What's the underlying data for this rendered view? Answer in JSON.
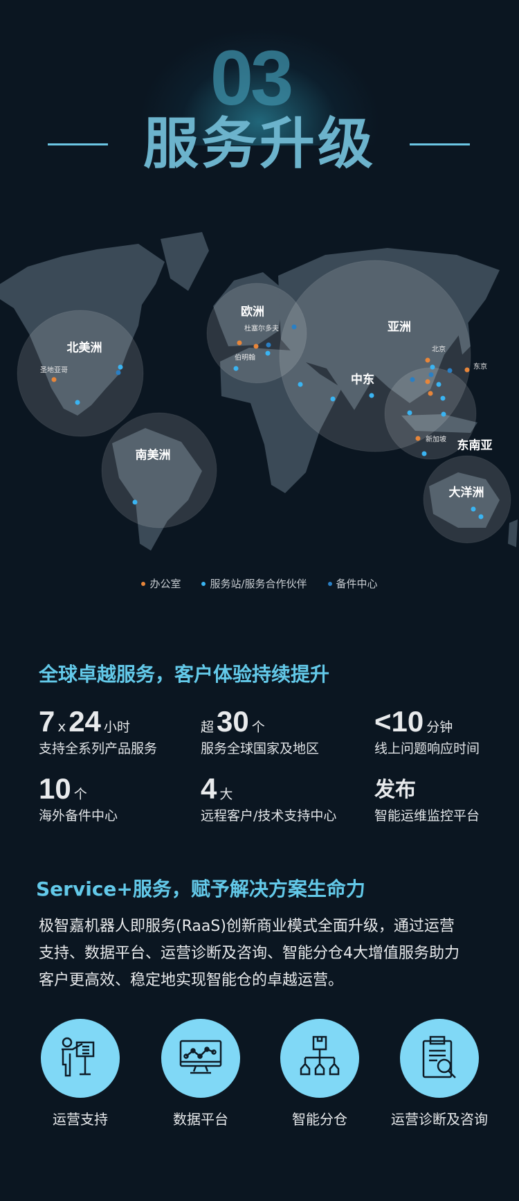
{
  "header": {
    "section_number": "03",
    "title": "服务升级"
  },
  "map": {
    "continents": [
      "北美洲",
      "南美洲",
      "欧洲",
      "亚洲",
      "中东",
      "东南亚",
      "大洋洲"
    ],
    "cities": [
      "圣地亚哥",
      "杜塞尔多夫",
      "伯明翰",
      "北京",
      "东京",
      "新加坡"
    ],
    "legend": [
      {
        "label": "办公室",
        "color": "#e8863a"
      },
      {
        "label": "服务站/服务合作伙伴",
        "color": "#3ab4f2"
      },
      {
        "label": "备件中心",
        "color": "#2a7fc4"
      }
    ]
  },
  "stats_section": {
    "heading": "全球卓越服务，客户体验持续提升",
    "stats": [
      {
        "prefix": "",
        "value": "7",
        "mid": "x",
        "value2": "24",
        "unit": "小时",
        "label": "支持全系列产品服务"
      },
      {
        "prefix": "超",
        "value": "30",
        "unit": "个",
        "label": "服务全球国家及地区"
      },
      {
        "prefix": "",
        "value": "<10",
        "unit": "分钟",
        "label": "线上问题响应时间"
      },
      {
        "prefix": "",
        "value": "10",
        "unit": "个",
        "label": "海外备件中心"
      },
      {
        "prefix": "",
        "value": "4",
        "unit": "大",
        "label": "远程客户/技术支持中心"
      },
      {
        "prefix": "",
        "value": "发布",
        "unit": "",
        "label": "智能运维监控平台"
      }
    ]
  },
  "service_section": {
    "heading": "Service+服务，赋予解决方案生命力",
    "paragraph_lines": [
      "极智嘉机器人即服务(RaaS)创新商业模式全面升级，通过运营",
      "支持、数据平台、运营诊断及咨询、智能分仓4大增值服务助力",
      "客户更高效、稳定地实现智能仓的卓越运营。"
    ],
    "services": [
      {
        "label": "运营支持",
        "icon": "presenter-board-icon"
      },
      {
        "label": "数据平台",
        "icon": "monitor-chart-icon"
      },
      {
        "label": "智能分仓",
        "icon": "warehouse-distribution-icon"
      },
      {
        "label": "运营诊断及咨询",
        "icon": "clipboard-search-icon"
      }
    ]
  },
  "colors": {
    "background": "#0b1621",
    "accent": "#63c9e9",
    "icon_circle": "#80d8f6",
    "land": "#3b4a57"
  }
}
